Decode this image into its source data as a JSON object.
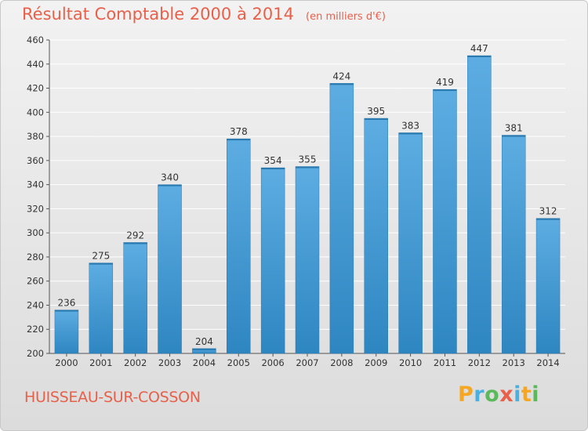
{
  "header": {
    "title": "Résultat Comptable 2000 à 2014",
    "subtitle": "(en milliers d'€)"
  },
  "footer": {
    "location": "HUISSEAU-SUR-COSSON",
    "logo_text": "Proxiti"
  },
  "colors": {
    "bar_light": "#5dade2",
    "bar_dark": "#2e86c1",
    "title": "#e8604a"
  },
  "chart_data": {
    "type": "bar",
    "title": "Résultat Comptable 2000 à 2014",
    "subtitle": "(en milliers d'€)",
    "categories": [
      "2000",
      "2001",
      "2002",
      "2003",
      "2004",
      "2005",
      "2006",
      "2007",
      "2008",
      "2009",
      "2010",
      "2011",
      "2012",
      "2013",
      "2014"
    ],
    "values": [
      236,
      275,
      292,
      340,
      204,
      378,
      354,
      355,
      424,
      395,
      383,
      419,
      447,
      381,
      312
    ],
    "ylim": [
      200,
      460
    ],
    "yticks": [
      200,
      220,
      240,
      260,
      280,
      300,
      320,
      340,
      360,
      380,
      400,
      420,
      440,
      460
    ],
    "grid": true,
    "xlabel": "",
    "ylabel": ""
  }
}
